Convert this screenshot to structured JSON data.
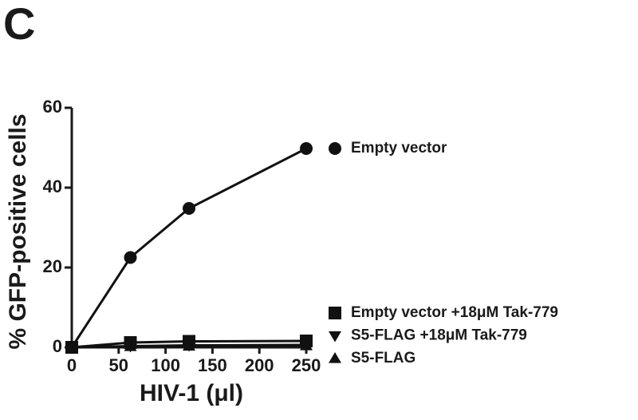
{
  "chart_data": {
    "type": "line",
    "panel_label": "C",
    "x_label": "HIV-1 (μl)",
    "y_label": "% GFP-positive cells",
    "x": [
      0,
      62.5,
      125,
      250
    ],
    "xlim": [
      0,
      250
    ],
    "xticks": [
      0,
      50,
      100,
      150,
      200,
      250
    ],
    "ylim": [
      0,
      60
    ],
    "yticks": [
      0,
      20,
      40,
      60
    ],
    "series": [
      {
        "name": "Empty vector",
        "color": "#111111",
        "marker": "circle",
        "values": [
          0,
          22.5,
          34.8,
          49.8
        ]
      },
      {
        "name": "Empty vector +18μM Tak-779",
        "color": "#111111",
        "marker": "square",
        "values": [
          0,
          1.2,
          1.5,
          1.6
        ]
      },
      {
        "name": "S5-FLAG +18μM Tak-779",
        "color": "#111111",
        "marker": "triangle-down",
        "values": [
          0,
          0.3,
          0.5,
          0.6
        ]
      },
      {
        "name": "S5-FLAG",
        "color": "#111111",
        "marker": "triangle-up",
        "values": [
          0,
          0.2,
          0.3,
          0.4
        ]
      }
    ]
  }
}
